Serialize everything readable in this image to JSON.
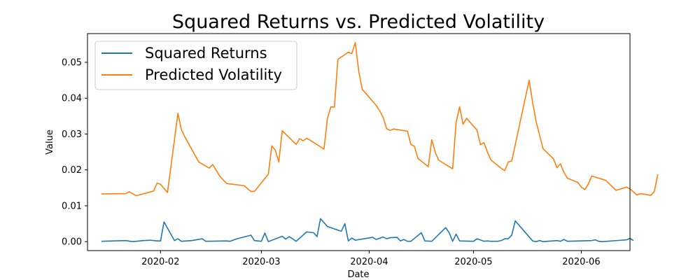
{
  "chart_data": {
    "type": "line",
    "title": "Squared Returns vs. Predicted Volatility",
    "xlabel": "Date",
    "ylabel": "Value",
    "x_axis": "date",
    "xlim": [
      "2020-01-11",
      "2020-06-15"
    ],
    "ylim": [
      -0.0025,
      0.058
    ],
    "x_ticks": [
      {
        "date": "2020-02-01",
        "label": "2020-02"
      },
      {
        "date": "2020-03-01",
        "label": "2020-03"
      },
      {
        "date": "2020-04-01",
        "label": "2020-04"
      },
      {
        "date": "2020-05-01",
        "label": "2020-05"
      },
      {
        "date": "2020-06-01",
        "label": "2020-06"
      }
    ],
    "y_ticks": [
      {
        "value": 0.0,
        "label": "0.00"
      },
      {
        "value": 0.01,
        "label": "0.01"
      },
      {
        "value": 0.02,
        "label": "0.02"
      },
      {
        "value": 0.03,
        "label": "0.03"
      },
      {
        "value": 0.04,
        "label": "0.04"
      },
      {
        "value": 0.05,
        "label": "0.05"
      }
    ],
    "grid": false,
    "legend_position": "upper-left",
    "series": [
      {
        "name": "Squared Returns",
        "color": "#1f77b4",
        "points": [
          [
            "2020-01-15",
            0.0001
          ],
          [
            "2020-01-22",
            0.0003
          ],
          [
            "2020-01-24",
            0.0
          ],
          [
            "2020-01-27",
            0.0003
          ],
          [
            "2020-01-29",
            0.0004
          ],
          [
            "2020-01-31",
            0.0002
          ],
          [
            "2020-02-01",
            0.0002
          ],
          [
            "2020-02-02",
            0.0055
          ],
          [
            "2020-02-05",
            0.0003
          ],
          [
            "2020-02-06",
            0.0008
          ],
          [
            "2020-02-07",
            0.0001
          ],
          [
            "2020-02-10",
            0.0003
          ],
          [
            "2020-02-13",
            0.0008
          ],
          [
            "2020-02-14",
            0.0001
          ],
          [
            "2020-02-20",
            0.0002
          ],
          [
            "2020-02-21",
            0.0001
          ],
          [
            "2020-02-23",
            0.0008
          ],
          [
            "2020-02-27",
            0.0018
          ],
          [
            "2020-02-28",
            0.0003
          ],
          [
            "2020-03-01",
            0.0001
          ],
          [
            "2020-03-02",
            0.0024
          ],
          [
            "2020-03-03",
            0.0
          ],
          [
            "2020-03-07",
            0.0015
          ],
          [
            "2020-03-08",
            0.0007
          ],
          [
            "2020-03-09",
            0.0014
          ],
          [
            "2020-03-11",
            0.0001
          ],
          [
            "2020-03-14",
            0.0027
          ],
          [
            "2020-03-16",
            0.0025
          ],
          [
            "2020-03-17",
            0.0014
          ],
          [
            "2020-03-18",
            0.0064
          ],
          [
            "2020-03-20",
            0.0042
          ],
          [
            "2020-03-24",
            0.0029
          ],
          [
            "2020-03-25",
            0.005
          ],
          [
            "2020-03-26",
            0.0002
          ],
          [
            "2020-03-27",
            0.001
          ],
          [
            "2020-03-28",
            0.0004
          ],
          [
            "2020-04-02",
            0.0012
          ],
          [
            "2020-04-03",
            0.0006
          ],
          [
            "2020-04-05",
            0.0013
          ],
          [
            "2020-04-06",
            0.0008
          ],
          [
            "2020-04-07",
            0.0011
          ],
          [
            "2020-04-09",
            0.0012
          ],
          [
            "2020-04-10",
            0.0002
          ],
          [
            "2020-04-11",
            0.0006
          ],
          [
            "2020-04-12",
            0.0001
          ],
          [
            "2020-04-13",
            0.0001
          ],
          [
            "2020-04-16",
            0.0025
          ],
          [
            "2020-04-17",
            0.0002
          ],
          [
            "2020-04-19",
            0.0001
          ],
          [
            "2020-04-23",
            0.0039
          ],
          [
            "2020-04-24",
            0.0025
          ],
          [
            "2020-04-25",
            0.0001
          ],
          [
            "2020-04-26",
            0.0021
          ],
          [
            "2020-04-27",
            0.0002
          ],
          [
            "2020-05-01",
            0.0001
          ],
          [
            "2020-05-02",
            0.0008
          ],
          [
            "2020-05-04",
            0.0001
          ],
          [
            "2020-05-05",
            0.0002
          ],
          [
            "2020-05-06",
            0.0001
          ],
          [
            "2020-05-08",
            0.0001
          ],
          [
            "2020-05-09",
            0.0003
          ],
          [
            "2020-05-10",
            0.0008
          ],
          [
            "2020-05-11",
            0.0008
          ],
          [
            "2020-05-12",
            0.0018
          ],
          [
            "2020-05-13",
            0.0058
          ],
          [
            "2020-05-18",
            0.0002
          ],
          [
            "2020-05-19",
            0.0
          ],
          [
            "2020-05-20",
            0.0003
          ],
          [
            "2020-05-21",
            0.0
          ],
          [
            "2020-05-25",
            0.0003
          ],
          [
            "2020-05-26",
            0.0001
          ],
          [
            "2020-05-27",
            0.0006
          ],
          [
            "2020-05-28",
            0.0001
          ],
          [
            "2020-06-04",
            0.0003
          ],
          [
            "2020-06-05",
            0.0005
          ],
          [
            "2020-06-06",
            0.0001
          ],
          [
            "2020-06-07",
            0.0
          ],
          [
            "2020-06-14",
            0.0005
          ],
          [
            "2020-06-15",
            0.0009
          ],
          [
            "2020-06-16",
            0.0003
          ]
        ]
      },
      {
        "name": "Predicted Volatility",
        "color": "#ff7f0e",
        "points": [
          [
            "2020-01-15",
            0.0133
          ],
          [
            "2020-01-22",
            0.0134
          ],
          [
            "2020-01-23",
            0.0139
          ],
          [
            "2020-01-25",
            0.0128
          ],
          [
            "2020-01-30",
            0.0141
          ],
          [
            "2020-01-31",
            0.0163
          ],
          [
            "2020-02-01",
            0.016
          ],
          [
            "2020-02-03",
            0.0137
          ],
          [
            "2020-02-04",
            0.021
          ],
          [
            "2020-02-06",
            0.0358
          ],
          [
            "2020-02-07",
            0.0312
          ],
          [
            "2020-02-08",
            0.0292
          ],
          [
            "2020-02-12",
            0.0222
          ],
          [
            "2020-02-15",
            0.0205
          ],
          [
            "2020-02-16",
            0.0215
          ],
          [
            "2020-02-18",
            0.0183
          ],
          [
            "2020-02-20",
            0.0162
          ],
          [
            "2020-02-25",
            0.0156
          ],
          [
            "2020-02-27",
            0.014
          ],
          [
            "2020-02-28",
            0.014
          ],
          [
            "2020-03-03",
            0.0188
          ],
          [
            "2020-03-04",
            0.0267
          ],
          [
            "2020-03-05",
            0.0255
          ],
          [
            "2020-03-06",
            0.0222
          ],
          [
            "2020-03-07",
            0.0309
          ],
          [
            "2020-03-11",
            0.0271
          ],
          [
            "2020-03-12",
            0.0287
          ],
          [
            "2020-03-13",
            0.0281
          ],
          [
            "2020-03-14",
            0.0288
          ],
          [
            "2020-03-15",
            0.0283
          ],
          [
            "2020-03-19",
            0.0258
          ],
          [
            "2020-03-20",
            0.0344
          ],
          [
            "2020-03-21",
            0.0376
          ],
          [
            "2020-03-22",
            0.0375
          ],
          [
            "2020-03-23",
            0.0508
          ],
          [
            "2020-03-26",
            0.0528
          ],
          [
            "2020-03-27",
            0.0524
          ],
          [
            "2020-03-28",
            0.0555
          ],
          [
            "2020-03-29",
            0.0475
          ],
          [
            "2020-03-30",
            0.0425
          ],
          [
            "2020-04-03",
            0.038
          ],
          [
            "2020-04-04",
            0.0365
          ],
          [
            "2020-04-05",
            0.0347
          ],
          [
            "2020-04-06",
            0.0315
          ],
          [
            "2020-04-07",
            0.031
          ],
          [
            "2020-04-08",
            0.0314
          ],
          [
            "2020-04-12",
            0.0308
          ],
          [
            "2020-04-13",
            0.0271
          ],
          [
            "2020-04-14",
            0.0266
          ],
          [
            "2020-04-15",
            0.0232
          ],
          [
            "2020-04-18",
            0.0209
          ],
          [
            "2020-04-19",
            0.0284
          ],
          [
            "2020-04-20",
            0.0249
          ],
          [
            "2020-04-21",
            0.0227
          ],
          [
            "2020-04-25",
            0.0203
          ],
          [
            "2020-04-26",
            0.0332
          ],
          [
            "2020-04-27",
            0.0376
          ],
          [
            "2020-04-28",
            0.0327
          ],
          [
            "2020-04-29",
            0.0344
          ],
          [
            "2020-05-02",
            0.0311
          ],
          [
            "2020-05-03",
            0.027
          ],
          [
            "2020-05-04",
            0.0276
          ],
          [
            "2020-05-05",
            0.025
          ],
          [
            "2020-05-06",
            0.0228
          ],
          [
            "2020-05-09",
            0.0204
          ],
          [
            "2020-05-10",
            0.0198
          ],
          [
            "2020-05-11",
            0.0222
          ],
          [
            "2020-05-12",
            0.0225
          ],
          [
            "2020-05-17",
            0.045
          ],
          [
            "2020-05-18",
            0.0388
          ],
          [
            "2020-05-19",
            0.0335
          ],
          [
            "2020-05-21",
            0.0259
          ],
          [
            "2020-05-24",
            0.0231
          ],
          [
            "2020-05-25",
            0.0206
          ],
          [
            "2020-05-26",
            0.0217
          ],
          [
            "2020-05-27",
            0.0193
          ],
          [
            "2020-05-28",
            0.0177
          ],
          [
            "2020-05-31",
            0.0165
          ],
          [
            "2020-06-01",
            0.0152
          ],
          [
            "2020-06-02",
            0.0145
          ],
          [
            "2020-06-03",
            0.016
          ],
          [
            "2020-06-04",
            0.0183
          ],
          [
            "2020-06-08",
            0.0171
          ],
          [
            "2020-06-11",
            0.0143
          ],
          [
            "2020-06-14",
            0.0152
          ],
          [
            "2020-06-15",
            0.0147
          ],
          [
            "2020-06-17",
            0.013
          ],
          [
            "2020-06-18",
            0.0134
          ],
          [
            "2020-06-21",
            0.0129
          ],
          [
            "2020-06-22",
            0.014
          ],
          [
            "2020-06-23",
            0.0188
          ]
        ]
      }
    ]
  }
}
